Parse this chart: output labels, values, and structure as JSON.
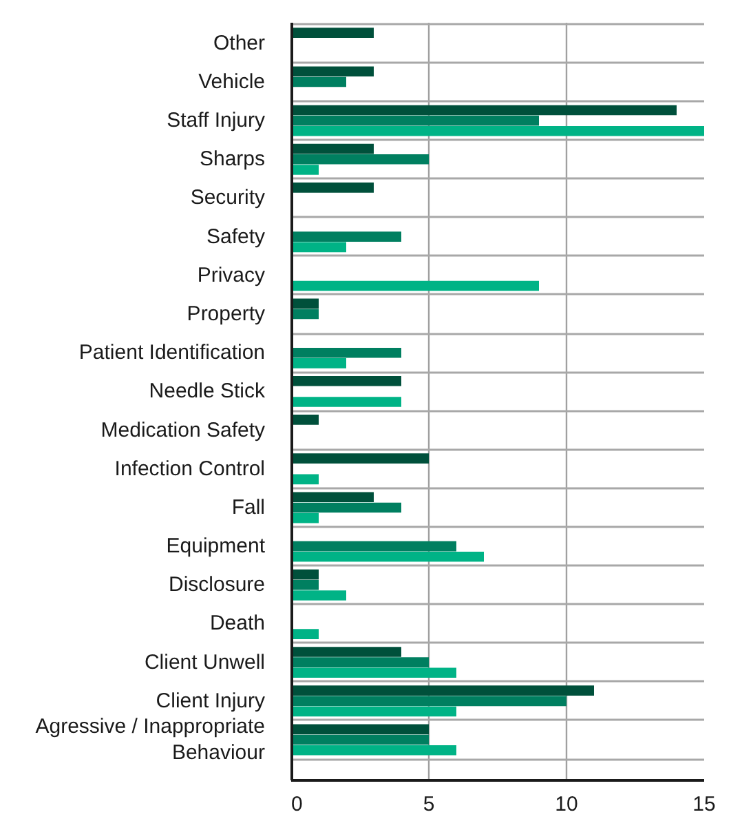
{
  "chart_data": {
    "type": "bar",
    "orientation": "horizontal",
    "categories": [
      "Other",
      "Vehicle",
      "Staff Injury",
      "Sharps",
      "Security",
      "Safety",
      "Privacy",
      "Property",
      "Patient Identification",
      "Needle Stick",
      "Medication Safety",
      "Infection Control",
      "Fall",
      "Equipment",
      "Disclosure",
      "Death",
      "Client Unwell",
      "Client Injury",
      "Agressive / Inappropriate Behaviour"
    ],
    "series": [
      {
        "color": "#00503b",
        "values": [
          3,
          3,
          14,
          3,
          3,
          null,
          null,
          1,
          null,
          4,
          1,
          5,
          3,
          null,
          1,
          null,
          4,
          11,
          5
        ]
      },
      {
        "color": "#007f60",
        "values": [
          null,
          2,
          9,
          5,
          null,
          4,
          null,
          1,
          4,
          null,
          null,
          null,
          4,
          6,
          1,
          null,
          5,
          10,
          5
        ]
      },
      {
        "color": "#00b386",
        "values": [
          null,
          null,
          15,
          1,
          null,
          2,
          9,
          null,
          2,
          4,
          null,
          1,
          1,
          7,
          2,
          1,
          6,
          6,
          6
        ]
      }
    ],
    "xlim": [
      0,
      15
    ],
    "xticks": [
      0,
      5,
      10,
      15
    ],
    "grid": true
  }
}
